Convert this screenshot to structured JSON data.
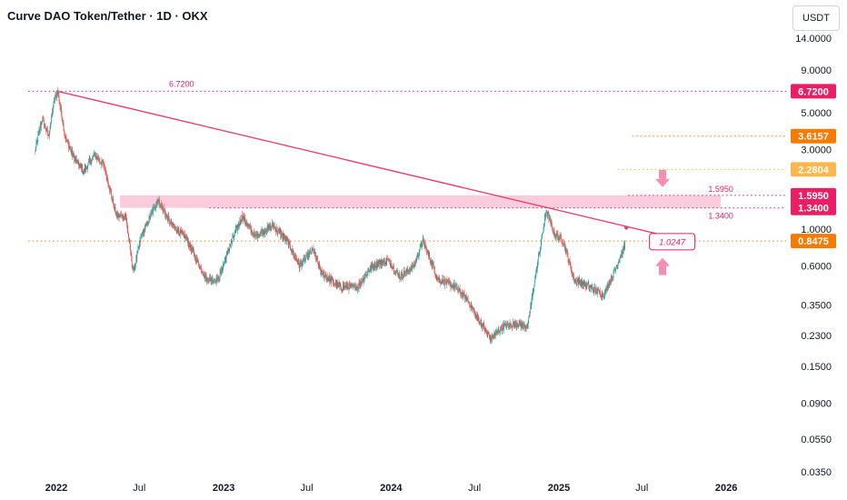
{
  "header": {
    "title": "Curve DAO Token/Tether · 1D · OKX",
    "currency": "USDT"
  },
  "colors": {
    "up": "#26a69a",
    "down": "#ef5350",
    "trend": "#e8416b",
    "pink": "#e91e63",
    "orange": "#f57c00",
    "lightorange": "#ffb74d",
    "zone": "#f8bbd0",
    "arrow": "#f48fb1"
  },
  "chart_data": {
    "type": "candlestick",
    "scale": "log",
    "yticks": [
      "14.0000",
      "9.0000",
      "5.0000",
      "3.0000",
      "1.0000",
      "0.6000",
      "0.3500",
      "0.2300",
      "0.1500",
      "0.0900",
      "0.0550",
      "0.0350"
    ],
    "xticks": [
      "2022",
      "Jul",
      "2023",
      "Jul",
      "2024",
      "Jul",
      "2025",
      "Jul",
      "2026"
    ],
    "price_path": [
      [
        "2021-11-15",
        2.9
      ],
      [
        "2021-12-01",
        4.6
      ],
      [
        "2021-12-15",
        3.6
      ],
      [
        "2021-12-28",
        6.0
      ],
      [
        "2022-01-04",
        6.72
      ],
      [
        "2022-01-20",
        3.6
      ],
      [
        "2022-02-05",
        2.8
      ],
      [
        "2022-03-01",
        2.2
      ],
      [
        "2022-03-25",
        2.8
      ],
      [
        "2022-04-15",
        2.4
      ],
      [
        "2022-05-12",
        1.2
      ],
      [
        "2022-06-01",
        1.2
      ],
      [
        "2022-06-18",
        0.55
      ],
      [
        "2022-07-05",
        0.9
      ],
      [
        "2022-08-10",
        1.5
      ],
      [
        "2022-09-10",
        1.05
      ],
      [
        "2022-10-10",
        0.9
      ],
      [
        "2022-11-09",
        0.6
      ],
      [
        "2022-11-25",
        0.5
      ],
      [
        "2022-12-20",
        0.5
      ],
      [
        "2023-01-15",
        0.8
      ],
      [
        "2023-02-10",
        1.2
      ],
      [
        "2023-03-10",
        0.9
      ],
      [
        "2023-04-18",
        1.05
      ],
      [
        "2023-05-20",
        0.85
      ],
      [
        "2023-06-15",
        0.6
      ],
      [
        "2023-07-15",
        0.75
      ],
      [
        "2023-08-01",
        0.55
      ],
      [
        "2023-09-10",
        0.45
      ],
      [
        "2023-10-20",
        0.45
      ],
      [
        "2023-11-20",
        0.6
      ],
      [
        "2023-12-25",
        0.65
      ],
      [
        "2024-01-20",
        0.52
      ],
      [
        "2024-02-20",
        0.6
      ],
      [
        "2024-03-10",
        0.85
      ],
      [
        "2024-04-13",
        0.5
      ],
      [
        "2024-05-20",
        0.45
      ],
      [
        "2024-06-15",
        0.38
      ],
      [
        "2024-07-05",
        0.3
      ],
      [
        "2024-08-05",
        0.22
      ],
      [
        "2024-09-01",
        0.26
      ],
      [
        "2024-10-01",
        0.27
      ],
      [
        "2024-10-25",
        0.26
      ],
      [
        "2024-11-12",
        0.55
      ],
      [
        "2024-11-25",
        0.9
      ],
      [
        "2024-12-05",
        1.3
      ],
      [
        "2024-12-20",
        0.95
      ],
      [
        "2025-01-10",
        0.85
      ],
      [
        "2025-02-03",
        0.5
      ],
      [
        "2025-03-10",
        0.45
      ],
      [
        "2025-04-08",
        0.4
      ],
      [
        "2025-05-01",
        0.55
      ],
      [
        "2025-05-25",
        0.8
      ]
    ],
    "trendline": {
      "from": [
        "2022-01-04",
        6.72
      ],
      "to": [
        "2025-10-15",
        0.84
      ]
    },
    "trendline_marker": [
      "2025-05-28",
      1.02
    ],
    "levels": [
      {
        "value": 6.72,
        "label": "6.7200",
        "color": "pink",
        "style": "dotted",
        "from": "2021-11-01"
      },
      {
        "value": 3.6157,
        "label": "3.6157",
        "color": "orange",
        "style": "dotted",
        "from": "2025-06-10"
      },
      {
        "value": 2.2804,
        "label": "2.2804",
        "color": "lightorange",
        "style": "dotted",
        "from": "2025-05-10"
      },
      {
        "value": 1.595,
        "label": "1.5950",
        "color": "pink",
        "style": "dotted",
        "from": "2025-06-01"
      },
      {
        "value": 1.34,
        "label": "1.3400",
        "color": "pink",
        "style": "dotted",
        "from": "2022-12-01"
      },
      {
        "value": 0.8475,
        "label": "0.8475",
        "color": "orange",
        "style": "dotted",
        "from": "2021-11-01"
      }
    ],
    "zone": {
      "low": 1.34,
      "high": 1.595,
      "from": "2022-05-20",
      "to": "2025-12-20"
    },
    "annotations": [
      {
        "text": "6.7200",
        "at": [
          "2022-10-01",
          6.72
        ]
      },
      {
        "text": "1.5950",
        "at": [
          "2025-12-20",
          1.595
        ]
      },
      {
        "text": "1.3400",
        "at": [
          "2025-12-20",
          1.34
        ]
      },
      {
        "text": "1.0247",
        "at": [
          "2025-09-05",
          0.84
        ]
      }
    ],
    "arrows": [
      {
        "direction": "down",
        "at": [
          "2025-08-15",
          2.0
        ]
      },
      {
        "direction": "up",
        "at": [
          "2025-08-15",
          0.6
        ]
      }
    ]
  }
}
